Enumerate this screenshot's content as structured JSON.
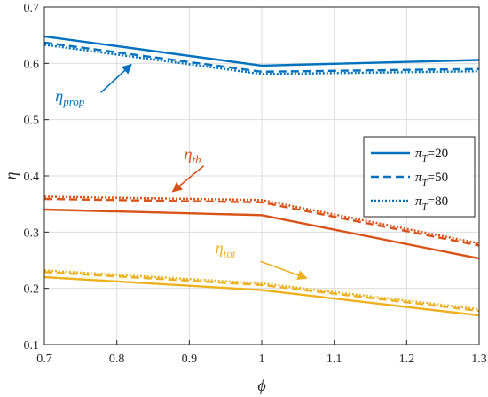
{
  "chart_data": {
    "type": "line",
    "xlabel": "ϕ",
    "ylabel": "η",
    "xlim": [
      0.7,
      1.3
    ],
    "ylim": [
      0.1,
      0.7
    ],
    "xticks": [
      "0.7",
      "0.8",
      "0.9",
      "1",
      "1.1",
      "1.2",
      "1.3"
    ],
    "yticks": [
      "0.1",
      "0.2",
      "0.3",
      "0.4",
      "0.5",
      "0.6",
      "0.7"
    ],
    "grid": true,
    "legend": {
      "placement": "right",
      "entries": [
        {
          "base": "π",
          "sub": "T",
          "suffix": "=20",
          "dash": "solid"
        },
        {
          "base": "π",
          "sub": "T",
          "suffix": "=50",
          "dash": "dashed"
        },
        {
          "base": "π",
          "sub": "T",
          "suffix": "=80",
          "dash": "dotted"
        }
      ]
    },
    "colors": {
      "prop": "#0072BD",
      "th": "#D95319",
      "tot": "#EDB120"
    },
    "groups": [
      {
        "key": "prop",
        "label": {
          "base": "η",
          "sub": "prop"
        },
        "lines": [
          {
            "dash": "solid",
            "x": [
              0.7,
              1.0,
              1.3
            ],
            "y": [
              0.648,
              0.596,
              0.606
            ]
          },
          {
            "dash": "dashed",
            "x": [
              0.7,
              1.0,
              1.3
            ],
            "y": [
              0.637,
              0.585,
              0.59
            ]
          },
          {
            "dash": "dotted",
            "x": [
              0.7,
              1.0,
              1.3
            ],
            "y": [
              0.633,
              0.581,
              0.586
            ]
          }
        ]
      },
      {
        "key": "th",
        "label": {
          "base": "η",
          "sub": "th"
        },
        "lines": [
          {
            "dash": "solid",
            "x": [
              0.7,
              1.0,
              1.3
            ],
            "y": [
              0.34,
              0.33,
              0.253
            ]
          },
          {
            "dash": "dashed",
            "x": [
              0.7,
              1.0,
              1.3
            ],
            "y": [
              0.359,
              0.353,
              0.276
            ]
          },
          {
            "dash": "dotted",
            "x": [
              0.7,
              1.0,
              1.3
            ],
            "y": [
              0.363,
              0.357,
              0.28
            ]
          }
        ]
      },
      {
        "key": "tot",
        "label": {
          "base": "η",
          "sub": "tot"
        },
        "lines": [
          {
            "dash": "solid",
            "x": [
              0.7,
              1.0,
              1.3
            ],
            "y": [
              0.22,
              0.197,
              0.152
            ]
          },
          {
            "dash": "dashed",
            "x": [
              0.7,
              1.0,
              1.3
            ],
            "y": [
              0.229,
              0.206,
              0.16
            ]
          },
          {
            "dash": "dotted",
            "x": [
              0.7,
              1.0,
              1.3
            ],
            "y": [
              0.232,
              0.209,
              0.163
            ]
          }
        ]
      }
    ],
    "annotations": [
      {
        "group": "prop",
        "text_at": [
          0.715,
          0.533
        ],
        "arrow_from": [
          0.778,
          0.548
        ],
        "arrow_to": [
          0.82,
          0.598
        ]
      },
      {
        "group": "th",
        "text_at": [
          0.893,
          0.43
        ],
        "arrow_from": [
          0.92,
          0.418
        ],
        "arrow_to": [
          0.877,
          0.372
        ]
      },
      {
        "group": "tot",
        "text_at": [
          0.936,
          0.263
        ],
        "arrow_from": [
          0.998,
          0.248
        ],
        "arrow_to": [
          1.062,
          0.218
        ]
      }
    ]
  }
}
